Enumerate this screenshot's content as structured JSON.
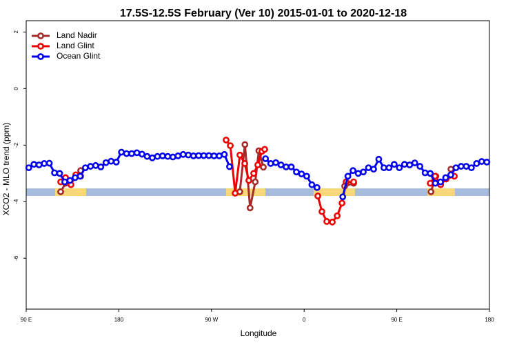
{
  "chart_data": {
    "type": "line",
    "title": "17.5S-12.5S February (Ver 10)   2015-01-01 to 2020-12-18",
    "x_label": "Longitude",
    "y_label": "XCO2 - MLO trend (ppm)",
    "xlim": [
      90,
      540
    ],
    "ylim": [
      -7.8,
      2.4
    ],
    "xticks": [
      {
        "value": 90,
        "label": "90 E"
      },
      180,
      {
        "value": 270,
        "label": "90 W"
      },
      {
        "value": 360,
        "label": "0"
      },
      {
        "value": 450,
        "label": "90 E"
      },
      {
        "value": 540,
        "label": "180"
      }
    ],
    "yticks": [
      2,
      0,
      -2,
      -4,
      -6
    ],
    "legend": "top-left",
    "series": [
      {
        "name": "Land Nadir",
        "color": "#a52a2a",
        "x": [
          123.5,
          128.2,
          142.9,
          297.5,
          302.5,
          307.5,
          312.5,
          316,
          320.4,
          399.4,
          408.1,
          483.2,
          487.9,
          502.6
        ],
        "values": [
          -3.65,
          -3.35,
          -2.9,
          -3.65,
          -1.98,
          -4.22,
          -3.3,
          -2.2,
          -2.78,
          -3.45,
          -3.35,
          -3.65,
          -3.1,
          -2.85
        ]
      },
      {
        "name": "Land Glint",
        "color": "#ee0000",
        "x": [
          123.5,
          128.2,
          133.5,
          138.2,
          142.9,
          284.2,
          288.3,
          293,
          297.6,
          302.3,
          306.3,
          311,
          315,
          319,
          321.7,
          373.3,
          377.3,
          382,
          387.4,
          392.1,
          396.8,
          400.8,
          408.1,
          482.5,
          487.2,
          492.6,
          497.9,
          505.9
        ],
        "values": [
          -3.3,
          -3.15,
          -3.4,
          -3.05,
          -3.1,
          -1.82,
          -2.02,
          -3.7,
          -2.35,
          -2.65,
          -3.25,
          -3.0,
          -2.7,
          -2.22,
          -2.15,
          -3.8,
          -4.35,
          -4.7,
          -4.72,
          -4.5,
          -4.05,
          -3.3,
          -3.3,
          -3.35,
          -3.1,
          -3.4,
          -3.2,
          -3.1
        ]
      },
      {
        "name": "Ocean Glint",
        "color": "#0000ee",
        "x": [
          92.5,
          97.5,
          102.5,
          107.5,
          112.5,
          117.5,
          122.5,
          127.5,
          132.5,
          137.5,
          142.5,
          147.5,
          152.5,
          157.5,
          162.5,
          167.5,
          172.5,
          177.5,
          182.5,
          187.5,
          192.5,
          197.5,
          202.5,
          207.5,
          212.5,
          217.5,
          222.5,
          227.5,
          232.5,
          237.5,
          242.5,
          247.5,
          252.5,
          257.5,
          262.5,
          267.5,
          272.5,
          277.5,
          282.5,
          287.5,
          322.5,
          327.5,
          332.5,
          337.5,
          342.5,
          347.5,
          352.5,
          357.5,
          362.5,
          367.5,
          372.5,
          397.5,
          402.5,
          407.5,
          412.5,
          417.5,
          422.5,
          427.5,
          432.5,
          437.5,
          442.5,
          447.5,
          452.5,
          457.5,
          462.5,
          467.5,
          472.5,
          477.5,
          482.5,
          487.5,
          492.5,
          497.5,
          502.5,
          507.5,
          512.5,
          517.5,
          522.5,
          527.5,
          532.5,
          537.5
        ],
        "values": [
          -2.8,
          -2.68,
          -2.7,
          -2.65,
          -2.64,
          -2.98,
          -3.0,
          -3.3,
          -3.25,
          -3.15,
          -3.1,
          -2.8,
          -2.75,
          -2.72,
          -2.77,
          -2.62,
          -2.57,
          -2.6,
          -2.25,
          -2.3,
          -2.3,
          -2.27,
          -2.32,
          -2.4,
          -2.45,
          -2.4,
          -2.38,
          -2.4,
          -2.42,
          -2.38,
          -2.33,
          -2.35,
          -2.38,
          -2.37,
          -2.37,
          -2.37,
          -2.38,
          -2.38,
          -2.33,
          -2.76,
          -2.48,
          -2.65,
          -2.62,
          -2.7,
          -2.77,
          -2.77,
          -2.95,
          -3.02,
          -3.1,
          -3.4,
          -3.5,
          -3.83,
          -3.1,
          -2.9,
          -3.0,
          -2.95,
          -2.8,
          -2.85,
          -2.5,
          -2.8,
          -2.8,
          -2.68,
          -2.8,
          -2.68,
          -2.7,
          -2.63,
          -2.75,
          -2.98,
          -3.0,
          -3.35,
          -3.3,
          -3.15,
          -3.05,
          -2.8,
          -2.75,
          -2.75,
          -2.8,
          -2.65,
          -2.58,
          -2.6
        ]
      }
    ]
  }
}
